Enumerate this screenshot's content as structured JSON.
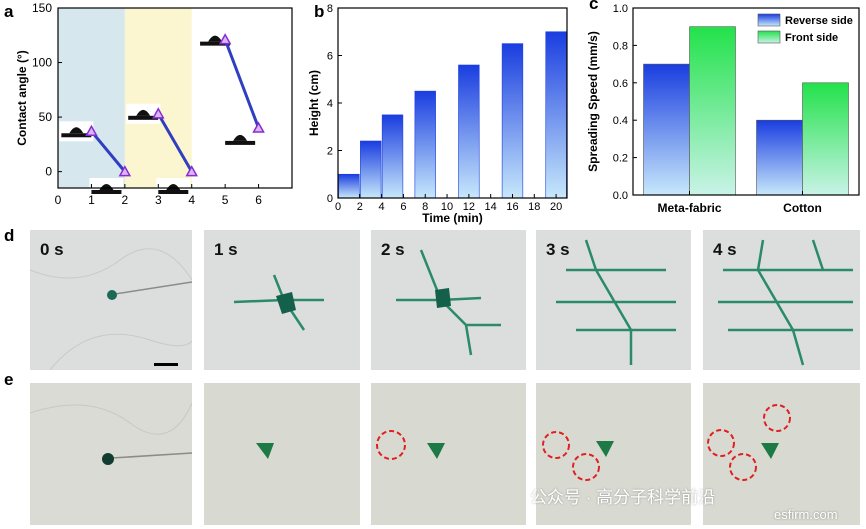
{
  "figure": {
    "panel_letters": [
      "a",
      "b",
      "c",
      "d",
      "e"
    ],
    "watermark": "公众号 · 高分子科学前沿",
    "site": "esfirm.com"
  },
  "chart_data": [
    {
      "type": "line",
      "panel": "a",
      "xlabel": "",
      "ylabel": "Contact angle (°)",
      "xlim": [
        0,
        7
      ],
      "ylim": [
        -15,
        150
      ],
      "xticks": [
        0,
        1,
        2,
        3,
        4,
        5,
        6
      ],
      "yticks": [
        0,
        50,
        100,
        150
      ],
      "shaded_regions": [
        {
          "x0": 0,
          "x1": 2,
          "color": "#d6e8ee"
        },
        {
          "x0": 2,
          "x1": 4,
          "color": "#fbf6cf"
        }
      ],
      "series": [
        {
          "x": [
            1,
            2
          ],
          "y": [
            37,
            0
          ]
        },
        {
          "x": [
            3,
            4
          ],
          "y": [
            53,
            0
          ]
        },
        {
          "x": [
            5,
            6
          ],
          "y": [
            121,
            40
          ]
        }
      ],
      "colors": {
        "line": "#2f3fbf",
        "marker": "#8a2ad0"
      }
    },
    {
      "type": "bar",
      "panel": "b",
      "xlabel": "Time (min)",
      "ylabel": "Height (cm)",
      "xlim": [
        0,
        21
      ],
      "ylim": [
        0,
        8
      ],
      "xticks": [
        0,
        2,
        4,
        6,
        8,
        10,
        12,
        14,
        16,
        18,
        20
      ],
      "yticks": [
        0,
        2,
        4,
        6,
        8
      ],
      "x": [
        1,
        3,
        5,
        8,
        12,
        16,
        20
      ],
      "values": [
        1,
        2.4,
        3.5,
        4.5,
        5.6,
        6.5,
        7
      ],
      "colors": {
        "top": "#1a3de0",
        "bottom": "#c7e8fb"
      }
    },
    {
      "type": "bar",
      "panel": "c",
      "xlabel": "",
      "ylabel": "Spreading Speed (mm/s)",
      "ylim": [
        0,
        1.0
      ],
      "yticks": [
        0.0,
        0.2,
        0.4,
        0.6,
        0.8,
        1.0
      ],
      "categories": [
        "Meta-fabric",
        "Cotton"
      ],
      "series": [
        {
          "name": "Reverse side",
          "values": [
            0.7,
            0.4
          ],
          "top": "#1a3de0",
          "bottom": "#c7e8fb"
        },
        {
          "name": "Front side",
          "values": [
            0.9,
            0.6
          ],
          "top": "#22e24a",
          "bottom": "#c9f3e8"
        }
      ],
      "legend": "top-right"
    }
  ],
  "photos_d": {
    "labels": [
      "0 s",
      "1 s",
      "2 s",
      "3 s",
      "4 s"
    ],
    "fabric_color": "#d9dbdb",
    "dye_color": "#1f7a5a"
  },
  "photos_e": {
    "fabric_color": "#d6d8cf",
    "dye_color": "#1d7a45",
    "marker_color": "#e02020"
  }
}
